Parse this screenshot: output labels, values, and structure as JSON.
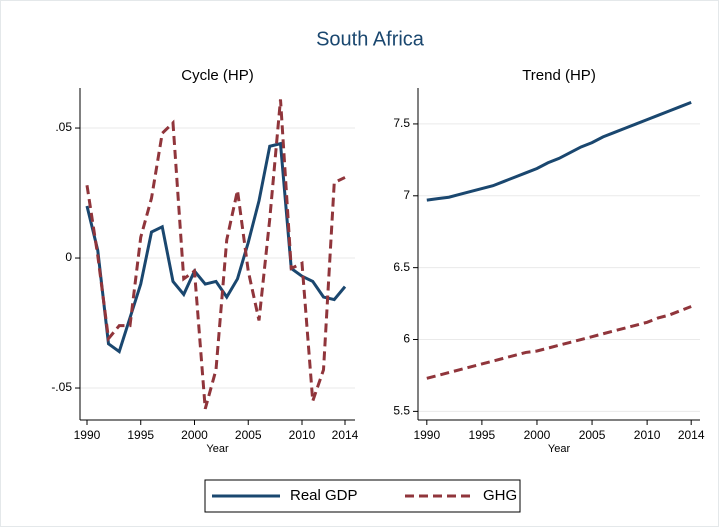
{
  "title": "South Africa",
  "legend": {
    "position": "bottom"
  },
  "chart_data": [
    {
      "type": "line",
      "title": "Cycle (HP)",
      "x_label": "Year",
      "x": [
        1990,
        1991,
        1992,
        1993,
        1994,
        1995,
        1996,
        1997,
        1998,
        1999,
        2000,
        2001,
        2002,
        2003,
        2004,
        2005,
        2006,
        2007,
        2008,
        2009,
        2010,
        2011,
        2012,
        2013,
        2014
      ],
      "xlim": [
        1989.35,
        2014.93
      ],
      "xticks": [
        1990,
        1995,
        2000,
        2005,
        2010,
        2014
      ],
      "ylim": [
        -0.0623,
        0.0654
      ],
      "yticks": [
        {
          "value": -0.05,
          "label": "-.05"
        },
        0,
        {
          "value": 0.05,
          "label": ".05"
        }
      ],
      "grid": true,
      "series": [
        {
          "name": "Real GDP",
          "color": "#1a476f",
          "line_style": "solid",
          "values": [
            0.02,
            0.003,
            -0.033,
            -0.036,
            -0.023,
            -0.01,
            0.01,
            0.012,
            -0.009,
            -0.014,
            -0.005,
            -0.01,
            -0.009,
            -0.015,
            -0.008,
            0.006,
            0.022,
            0.043,
            0.044,
            -0.004,
            -0.007,
            -0.009,
            -0.015,
            -0.016,
            -0.011
          ]
        },
        {
          "name": "GHG",
          "color": "#90353b",
          "line_style": "dashed",
          "values": [
            0.028,
            0.001,
            -0.031,
            -0.026,
            -0.026,
            0.008,
            0.023,
            0.048,
            0.052,
            -0.008,
            -0.005,
            -0.058,
            -0.043,
            0.007,
            0.026,
            -0.005,
            -0.024,
            0.015,
            0.061,
            -0.004,
            -0.002,
            -0.055,
            -0.043,
            0.029,
            0.031
          ]
        }
      ]
    },
    {
      "type": "line",
      "title": "Trend (HP)",
      "x_label": "Year",
      "x": [
        1990,
        1991,
        1992,
        1993,
        1994,
        1995,
        1996,
        1997,
        1998,
        1999,
        2000,
        2001,
        2002,
        2003,
        2004,
        2005,
        2006,
        2007,
        2008,
        2009,
        2010,
        2011,
        2012,
        2013,
        2014
      ],
      "xlim": [
        1989.2,
        2014.8
      ],
      "xticks": [
        1990,
        1995,
        2000,
        2005,
        2010,
        2014
      ],
      "ylim": [
        5.44,
        7.75
      ],
      "yticks": [
        5.5,
        6,
        6.5,
        7,
        7.5
      ],
      "grid": true,
      "series": [
        {
          "name": "Real GDP",
          "color": "#1a476f",
          "line_style": "solid",
          "values": [
            6.97,
            6.98,
            6.99,
            7.01,
            7.03,
            7.05,
            7.07,
            7.1,
            7.13,
            7.16,
            7.19,
            7.23,
            7.26,
            7.3,
            7.34,
            7.37,
            7.41,
            7.44,
            7.47,
            7.5,
            7.53,
            7.56,
            7.59,
            7.62,
            7.65
          ]
        },
        {
          "name": "GHG",
          "color": "#90353b",
          "line_style": "dashed",
          "values": [
            5.73,
            5.75,
            5.77,
            5.79,
            5.81,
            5.83,
            5.85,
            5.87,
            5.89,
            5.91,
            5.92,
            5.94,
            5.96,
            5.98,
            6.0,
            6.02,
            6.04,
            6.06,
            6.08,
            6.1,
            6.12,
            6.15,
            6.17,
            6.2,
            6.23
          ]
        }
      ]
    }
  ]
}
